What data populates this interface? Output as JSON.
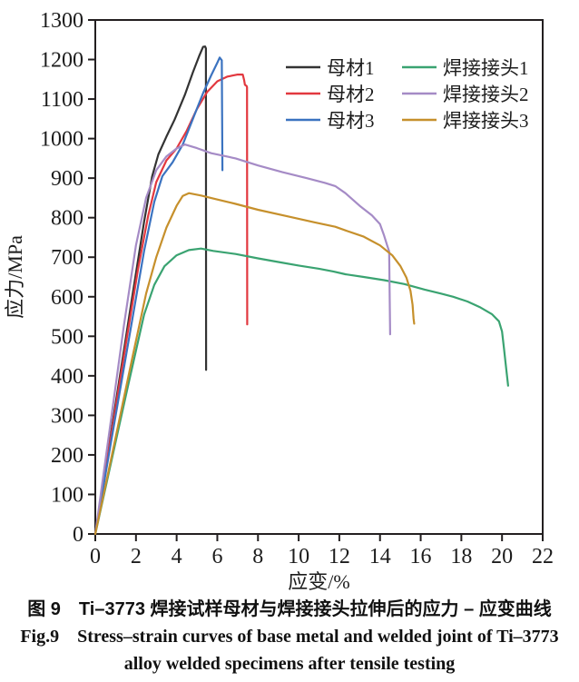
{
  "figure": {
    "caption_cn": "图 9　Ti–3773 焊接试样母材与焊接接头拉伸后的应力 – 应变曲线",
    "caption_en_1": "Fig.9　Stress–strain curves of base metal and welded joint of Ti–3773",
    "caption_en_2": "alloy welded specimens after tensile testing"
  },
  "chart_data": {
    "type": "line",
    "title": "",
    "xlabel": "应变/%",
    "ylabel": "应力/MPa",
    "xlim": [
      0,
      22
    ],
    "ylim": [
      0,
      1300
    ],
    "xticks": [
      0,
      2,
      4,
      6,
      8,
      10,
      12,
      14,
      16,
      18,
      20,
      22
    ],
    "yticks": [
      0,
      100,
      200,
      300,
      400,
      500,
      600,
      700,
      800,
      900,
      1000,
      1100,
      1200,
      1300
    ],
    "grid": false,
    "frame_color": "#231f20",
    "legend": {
      "position": "inside-top-right",
      "columns": 2
    },
    "series": [
      {
        "name": "母材1",
        "color": "#333333",
        "points": [
          [
            0,
            0
          ],
          [
            0.6,
            198
          ],
          [
            1.2,
            396
          ],
          [
            1.8,
            594
          ],
          [
            2.4,
            790
          ],
          [
            2.8,
            905
          ],
          [
            3.1,
            960
          ],
          [
            3.5,
            1005
          ],
          [
            3.9,
            1048
          ],
          [
            4.4,
            1110
          ],
          [
            4.8,
            1168
          ],
          [
            5.1,
            1208
          ],
          [
            5.3,
            1232
          ],
          [
            5.4,
            1233
          ],
          [
            5.44,
            1228
          ],
          [
            5.45,
            415
          ]
        ]
      },
      {
        "name": "母材2",
        "color": "#e2383f",
        "points": [
          [
            0,
            0
          ],
          [
            0.7,
            224
          ],
          [
            1.4,
            448
          ],
          [
            2.1,
            670
          ],
          [
            2.6,
            805
          ],
          [
            3.0,
            890
          ],
          [
            3.5,
            945
          ],
          [
            4.0,
            975
          ],
          [
            4.5,
            1020
          ],
          [
            5.0,
            1075
          ],
          [
            5.5,
            1118
          ],
          [
            6.0,
            1145
          ],
          [
            6.5,
            1157
          ],
          [
            7.0,
            1162
          ],
          [
            7.25,
            1162
          ],
          [
            7.32,
            1148
          ],
          [
            7.36,
            1136
          ],
          [
            7.44,
            1133
          ],
          [
            7.46,
            1130
          ],
          [
            7.47,
            530
          ]
        ]
      },
      {
        "name": "母材3",
        "color": "#3b73c0",
        "points": [
          [
            0,
            0
          ],
          [
            0.8,
            240
          ],
          [
            1.6,
            478
          ],
          [
            2.4,
            716
          ],
          [
            2.9,
            840
          ],
          [
            3.3,
            905
          ],
          [
            3.8,
            940
          ],
          [
            4.3,
            985
          ],
          [
            4.8,
            1050
          ],
          [
            5.3,
            1115
          ],
          [
            5.7,
            1160
          ],
          [
            6.0,
            1192
          ],
          [
            6.12,
            1205
          ],
          [
            6.22,
            1198
          ],
          [
            6.25,
            920
          ]
        ]
      },
      {
        "name": "焊接接头1",
        "color": "#3aa371",
        "points": [
          [
            0,
            0
          ],
          [
            0.8,
            186
          ],
          [
            1.6,
            373
          ],
          [
            2.4,
            555
          ],
          [
            2.9,
            630
          ],
          [
            3.4,
            677
          ],
          [
            4.0,
            705
          ],
          [
            4.6,
            718
          ],
          [
            5.2,
            722
          ],
          [
            5.8,
            716
          ],
          [
            6.9,
            708
          ],
          [
            8.0,
            697
          ],
          [
            9.0,
            688
          ],
          [
            10.0,
            679
          ],
          [
            11.0,
            671
          ],
          [
            11.7,
            664
          ],
          [
            12.3,
            657
          ],
          [
            13.2,
            650
          ],
          [
            14.2,
            642
          ],
          [
            15.2,
            632
          ],
          [
            16.2,
            618
          ],
          [
            17.0,
            608
          ],
          [
            17.6,
            600
          ],
          [
            18.3,
            588
          ],
          [
            18.9,
            574
          ],
          [
            19.5,
            556
          ],
          [
            19.85,
            538
          ],
          [
            20.0,
            512
          ],
          [
            20.1,
            468
          ],
          [
            20.18,
            430
          ],
          [
            20.3,
            375
          ]
        ]
      },
      {
        "name": "焊接接头2",
        "color": "#a58bc6",
        "points": [
          [
            0,
            0
          ],
          [
            0.7,
            262
          ],
          [
            1.4,
            525
          ],
          [
            2.0,
            730
          ],
          [
            2.5,
            850
          ],
          [
            3.0,
            920
          ],
          [
            3.5,
            955
          ],
          [
            4.0,
            975
          ],
          [
            4.4,
            985
          ],
          [
            5.0,
            976
          ],
          [
            5.7,
            963
          ],
          [
            6.9,
            950
          ],
          [
            8.0,
            932
          ],
          [
            9.2,
            915
          ],
          [
            10.4,
            900
          ],
          [
            11.3,
            888
          ],
          [
            11.8,
            880
          ],
          [
            12.3,
            862
          ],
          [
            13.0,
            830
          ],
          [
            13.6,
            806
          ],
          [
            14.0,
            784
          ],
          [
            14.2,
            755
          ],
          [
            14.35,
            730
          ],
          [
            14.45,
            715
          ],
          [
            14.5,
            505
          ]
        ]
      },
      {
        "name": "焊接接头3",
        "color": "#c6902c",
        "points": [
          [
            0,
            0
          ],
          [
            0.9,
            220
          ],
          [
            1.8,
            440
          ],
          [
            2.5,
            608
          ],
          [
            3.0,
            700
          ],
          [
            3.5,
            775
          ],
          [
            4.0,
            830
          ],
          [
            4.3,
            855
          ],
          [
            4.6,
            862
          ],
          [
            5.2,
            856
          ],
          [
            6.0,
            846
          ],
          [
            6.9,
            835
          ],
          [
            8.0,
            820
          ],
          [
            9.5,
            803
          ],
          [
            10.8,
            788
          ],
          [
            11.8,
            777
          ],
          [
            12.4,
            766
          ],
          [
            13.2,
            752
          ],
          [
            14.0,
            730
          ],
          [
            14.6,
            705
          ],
          [
            15.0,
            678
          ],
          [
            15.3,
            648
          ],
          [
            15.5,
            615
          ],
          [
            15.6,
            580
          ],
          [
            15.65,
            545
          ],
          [
            15.68,
            532
          ]
        ]
      }
    ]
  }
}
